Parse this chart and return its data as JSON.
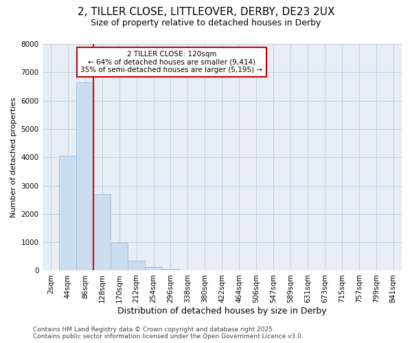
{
  "title_line1": "2, TILLER CLOSE, LITTLEOVER, DERBY, DE23 2UX",
  "title_line2": "Size of property relative to detached houses in Derby",
  "xlabel": "Distribution of detached houses by size in Derby",
  "ylabel": "Number of detached properties",
  "categories": [
    "2sqm",
    "44sqm",
    "86sqm",
    "128sqm",
    "170sqm",
    "212sqm",
    "254sqm",
    "296sqm",
    "338sqm",
    "380sqm",
    "422sqm",
    "464sqm",
    "506sqm",
    "547sqm",
    "589sqm",
    "631sqm",
    "673sqm",
    "715sqm",
    "757sqm",
    "799sqm",
    "841sqm"
  ],
  "values": [
    0,
    4050,
    6650,
    2700,
    980,
    350,
    130,
    50,
    0,
    0,
    0,
    0,
    0,
    0,
    0,
    0,
    0,
    0,
    0,
    0,
    0
  ],
  "bar_color": "#ccddf0",
  "bar_edge_color": "#9bbcd8",
  "grid_color": "#c0cfe0",
  "background_color": "#e8eef6",
  "vline_x_index": 2.5,
  "vline_color": "#dd0000",
  "annotation_text": "2 TILLER CLOSE: 120sqm\n← 64% of detached houses are smaller (9,414)\n35% of semi-detached houses are larger (5,195) →",
  "annotation_box_color": "#cc0000",
  "ylim": [
    0,
    8000
  ],
  "yticks": [
    0,
    1000,
    2000,
    3000,
    4000,
    5000,
    6000,
    7000,
    8000
  ],
  "footer_line1": "Contains HM Land Registry data © Crown copyright and database right 2025.",
  "footer_line2": "Contains public sector information licensed under the Open Government Licence v3.0.",
  "title_fontsize": 11,
  "subtitle_fontsize": 9,
  "xlabel_fontsize": 9,
  "ylabel_fontsize": 8,
  "tick_fontsize": 7.5,
  "footer_fontsize": 6.5
}
